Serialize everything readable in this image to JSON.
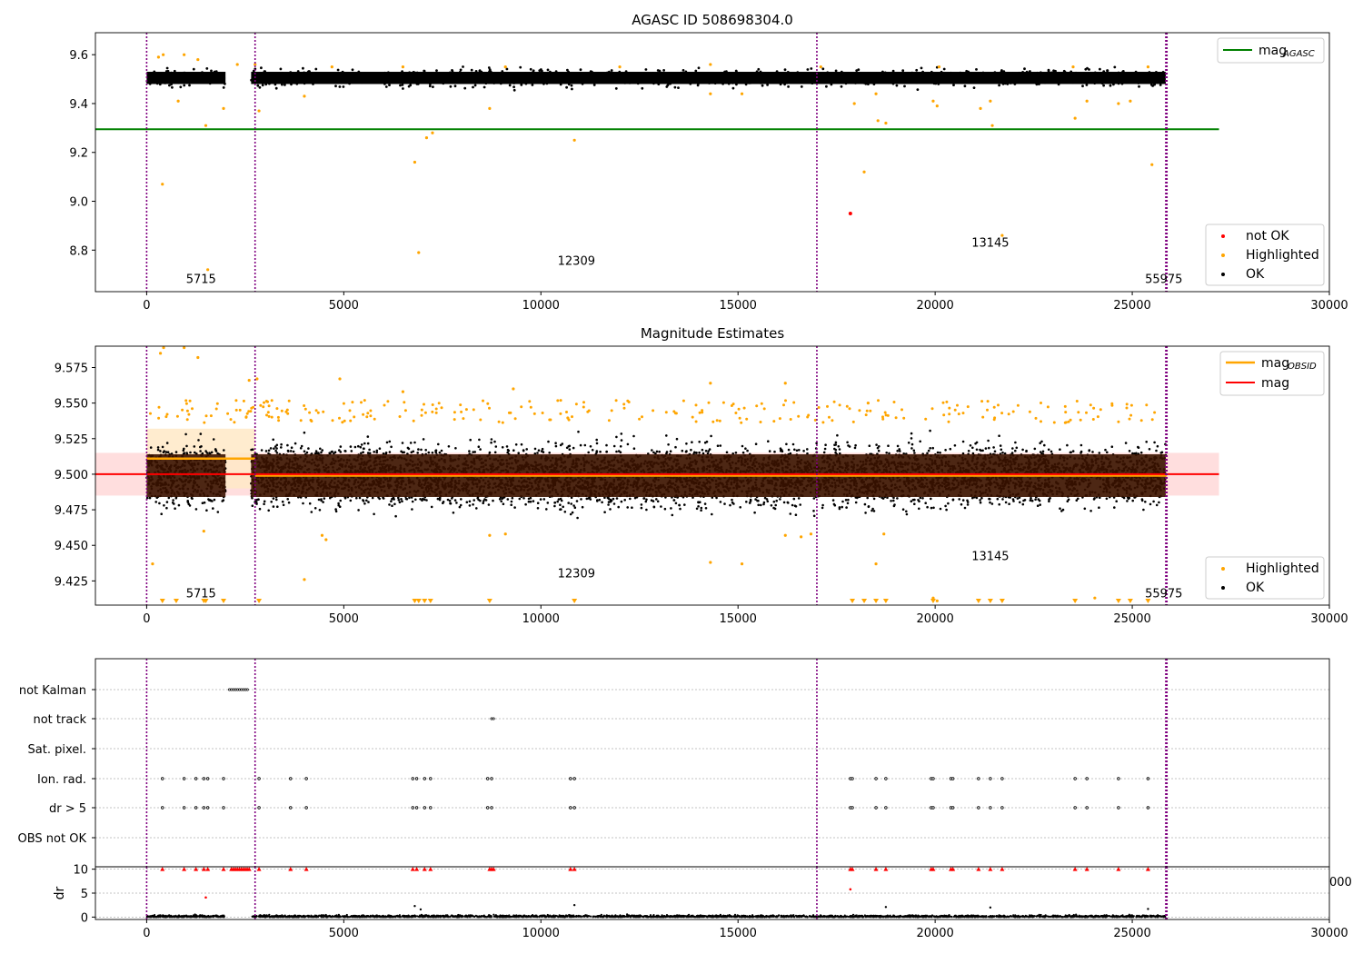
{
  "chart_data": [
    {
      "type": "scatter",
      "title": "AGASC ID 508698304.0",
      "xlim": [
        -1300,
        30000
      ],
      "ylim": [
        8.63,
        9.69
      ],
      "xticks": [
        0,
        5000,
        10000,
        15000,
        20000,
        25000,
        30000
      ],
      "xtick_labels": [
        "0",
        "5000",
        "10000",
        "15000",
        "20000",
        "25000",
        "30000"
      ],
      "yticks": [
        8.8,
        9.0,
        9.2,
        9.4,
        9.6
      ],
      "ytick_labels": [
        "8.8",
        "9.0",
        "9.2",
        "9.4",
        "9.6"
      ],
      "observation_boundaries": [
        0,
        2750,
        17000,
        25850,
        25880
      ],
      "observation_labels": [
        {
          "x": 1380,
          "y": 8.665,
          "text": "5715"
        },
        {
          "x": 10900,
          "y": 8.74,
          "text": "12309"
        },
        {
          "x": 21400,
          "y": 8.815,
          "text": "13145"
        },
        {
          "x": 25800,
          "y": 8.665,
          "text": "55975"
        }
      ],
      "agasc_mag": 9.295,
      "agasc_line_xrange": [
        -1300,
        27200
      ],
      "ok_band": {
        "center": 9.505,
        "half_width": 0.025,
        "segments": [
          [
            0,
            2000
          ],
          [
            2650,
            25850
          ]
        ]
      },
      "gap": [
        2050,
        2620
      ],
      "highlighted_points": [
        [
          400,
          9.07
        ],
        [
          1500,
          9.31
        ],
        [
          1550,
          8.72
        ],
        [
          1950,
          9.38
        ],
        [
          800,
          9.41
        ],
        [
          2850,
          9.37
        ],
        [
          4000,
          9.43
        ],
        [
          6800,
          9.16
        ],
        [
          6900,
          8.79
        ],
        [
          7100,
          9.26
        ],
        [
          7250,
          9.28
        ],
        [
          8700,
          9.38
        ],
        [
          10850,
          9.25
        ],
        [
          14300,
          9.44
        ],
        [
          15100,
          9.44
        ],
        [
          17950,
          9.4
        ],
        [
          18200,
          9.12
        ],
        [
          18500,
          9.44
        ],
        [
          18550,
          9.33
        ],
        [
          18750,
          9.32
        ],
        [
          19950,
          9.41
        ],
        [
          20050,
          9.39
        ],
        [
          21150,
          9.38
        ],
        [
          21400,
          9.41
        ],
        [
          21450,
          9.31
        ],
        [
          21700,
          8.86
        ],
        [
          23550,
          9.34
        ],
        [
          23850,
          9.41
        ],
        [
          24650,
          9.4
        ],
        [
          24950,
          9.41
        ],
        [
          25500,
          9.15
        ],
        [
          300,
          9.59
        ],
        [
          420,
          9.6
        ],
        [
          950,
          9.6
        ],
        [
          1300,
          9.58
        ],
        [
          2300,
          9.56
        ],
        [
          2750,
          9.56
        ],
        [
          4700,
          9.55
        ],
        [
          6500,
          9.55
        ],
        [
          9100,
          9.55
        ],
        [
          12000,
          9.55
        ],
        [
          14300,
          9.56
        ],
        [
          17100,
          9.55
        ],
        [
          20100,
          9.55
        ],
        [
          23500,
          9.55
        ],
        [
          25400,
          9.55
        ]
      ],
      "not_ok_points": [
        [
          17850,
          8.95
        ]
      ],
      "legends": [
        {
          "position": "upper right",
          "entries": [
            {
              "label": "mag",
              "sub": "AGASC",
              "color": "#008000",
              "kind": "line"
            }
          ]
        },
        {
          "position": "lower right",
          "entries": [
            {
              "label": "not OK",
              "color": "#ff0000",
              "kind": "dot"
            },
            {
              "label": "Highlighted",
              "color": "#ffa500",
              "kind": "dot"
            },
            {
              "label": "OK",
              "color": "#000000",
              "kind": "dot"
            }
          ]
        }
      ]
    },
    {
      "type": "scatter",
      "title": "Magnitude Estimates",
      "xlim": [
        -1300,
        30000
      ],
      "ylim": [
        9.408,
        9.59
      ],
      "xticks": [
        0,
        5000,
        10000,
        15000,
        20000,
        25000,
        30000
      ],
      "xtick_labels": [
        "0",
        "5000",
        "10000",
        "15000",
        "20000",
        "25000",
        "30000"
      ],
      "yticks": [
        9.425,
        9.45,
        9.475,
        9.5,
        9.525,
        9.55,
        9.575
      ],
      "ytick_labels": [
        "9.425",
        "9.450",
        "9.475",
        "9.500",
        "9.525",
        "9.550",
        "9.575"
      ],
      "observation_boundaries": [
        0,
        2750,
        17000,
        25850,
        25880
      ],
      "observation_labels": [
        {
          "x": 1380,
          "y": 9.4135,
          "text": "5715"
        },
        {
          "x": 10900,
          "y": 9.4275,
          "text": "12309"
        },
        {
          "x": 21400,
          "y": 9.4395,
          "text": "13145"
        },
        {
          "x": 25800,
          "y": 9.4135,
          "text": "55975"
        }
      ],
      "mag": 9.5,
      "mag_band": [
        9.485,
        9.515
      ],
      "mag_line_xrange": [
        -1300,
        27200
      ],
      "obsid_mag": [
        {
          "x0": 0,
          "x1": 2750,
          "mag": 9.511,
          "band": [
            9.49,
            9.532
          ]
        },
        {
          "x0": 2750,
          "x1": 25880,
          "mag": 9.499,
          "band": [
            9.484,
            9.514
          ]
        }
      ],
      "highlighted_points": [
        [
          150,
          9.437
        ],
        [
          1450,
          9.46
        ],
        [
          4000,
          9.426
        ],
        [
          4450,
          9.457
        ],
        [
          4550,
          9.454
        ],
        [
          8700,
          9.457
        ],
        [
          9100,
          9.458
        ],
        [
          14300,
          9.438
        ],
        [
          15100,
          9.437
        ],
        [
          16200,
          9.457
        ],
        [
          16600,
          9.456
        ],
        [
          16850,
          9.458
        ],
        [
          18500,
          9.437
        ],
        [
          18700,
          9.458
        ],
        [
          19950,
          9.413
        ],
        [
          20050,
          9.411
        ],
        [
          24050,
          9.413
        ],
        [
          350,
          9.585
        ],
        [
          430,
          9.589
        ],
        [
          950,
          9.589
        ],
        [
          1300,
          9.582
        ],
        [
          2600,
          9.566
        ],
        [
          2800,
          9.567
        ],
        [
          4900,
          9.567
        ],
        [
          6500,
          9.558
        ],
        [
          9300,
          9.56
        ],
        [
          14300,
          9.564
        ],
        [
          16200,
          9.564
        ],
        [
          18300,
          9.55
        ]
      ],
      "low_markers_x": [
        400,
        750,
        1450,
        1500,
        1950,
        2850,
        6800,
        6900,
        7050,
        7200,
        8700,
        10850,
        17900,
        18200,
        18500,
        18750,
        19950,
        21100,
        21400,
        21700,
        23550,
        24650,
        24950,
        25400
      ],
      "legends": [
        {
          "position": "upper right",
          "entries": [
            {
              "label": "mag",
              "sub": "OBSID",
              "color": "#ffa500",
              "kind": "line"
            },
            {
              "label": "mag",
              "color": "#ff0000",
              "kind": "line"
            }
          ]
        },
        {
          "position": "lower right",
          "entries": [
            {
              "label": "Highlighted",
              "color": "#ffa500",
              "kind": "dot"
            },
            {
              "label": "OK",
              "color": "#000000",
              "kind": "dot"
            }
          ]
        }
      ]
    },
    {
      "type": "scatter",
      "title": "",
      "xlim": [
        -1300,
        30000
      ],
      "flag_rows": [
        "not Kalman",
        "not track",
        "Sat. pixel.",
        "Ion. rad.",
        "dr > 5",
        "OBS not OK"
      ],
      "flags": [
        {
          "row": "not Kalman",
          "ranges": [
            [
              2100,
              2600
            ]
          ]
        },
        {
          "row": "not track",
          "ranges": [
            [
              8750,
              8850
            ]
          ]
        },
        {
          "row": "Ion. rad.",
          "points": [
            400,
            950,
            1250,
            1450,
            1550,
            1950,
            2850,
            3650,
            4050,
            6750,
            6850,
            7050,
            7200,
            8650,
            8750,
            10750,
            10850,
            17850,
            17900,
            18500,
            18750,
            19900,
            19950,
            20400,
            20450,
            21100,
            21400,
            21700,
            23550,
            23850,
            24650,
            25400
          ]
        },
        {
          "row": "dr > 5",
          "points": [
            400,
            950,
            1250,
            1450,
            1550,
            1950,
            2850,
            3650,
            4050,
            6750,
            6850,
            7050,
            7200,
            8650,
            8750,
            10750,
            10850,
            17850,
            17900,
            18500,
            18750,
            19900,
            19950,
            20400,
            20450,
            21100,
            21400,
            21700,
            23550,
            23850,
            24650,
            25400
          ]
        }
      ],
      "dr_panel": {
        "ylabel": "dr",
        "ylim": [
          -0.5,
          10.5
        ],
        "yticks": [
          0,
          5,
          10
        ],
        "ytick_labels": [
          "0",
          "5",
          "10"
        ],
        "xticks": [
          0,
          5000,
          10000,
          15000,
          20000,
          25000,
          30000
        ],
        "xtick_labels": [
          "0",
          "5000",
          "10000",
          "15000",
          "20000",
          "25000",
          "30000"
        ],
        "overflow_points": [
          400,
          950,
          1250,
          1450,
          1550,
          1950,
          2150,
          2200,
          2250,
          2300,
          2350,
          2400,
          2450,
          2500,
          2550,
          2600,
          2850,
          3650,
          4050,
          6750,
          6850,
          7050,
          7200,
          8700,
          8750,
          8800,
          10750,
          10850,
          17850,
          17900,
          18500,
          18750,
          19900,
          19950,
          20400,
          20450,
          21100,
          21400,
          21700,
          23550,
          23850,
          24650,
          25400
        ],
        "red_points": [
          [
            1500,
            4.1
          ],
          [
            17850,
            5.8
          ]
        ],
        "outlier_points": [
          [
            6800,
            2.3
          ],
          [
            6950,
            1.6
          ],
          [
            10850,
            2.5
          ],
          [
            18750,
            2.1
          ],
          [
            21400,
            2.0
          ],
          [
            25400,
            1.7
          ]
        ]
      },
      "clipped_tick_text": "000"
    }
  ],
  "colors": {
    "ok": "#000000",
    "highlighted": "#ffa500",
    "not_ok": "#ff0000",
    "agasc_line": "#008000",
    "mag_line": "#ff0000",
    "obsid_line": "#ffa500",
    "boundary": "#800080",
    "band_dark": "#3a1200"
  }
}
